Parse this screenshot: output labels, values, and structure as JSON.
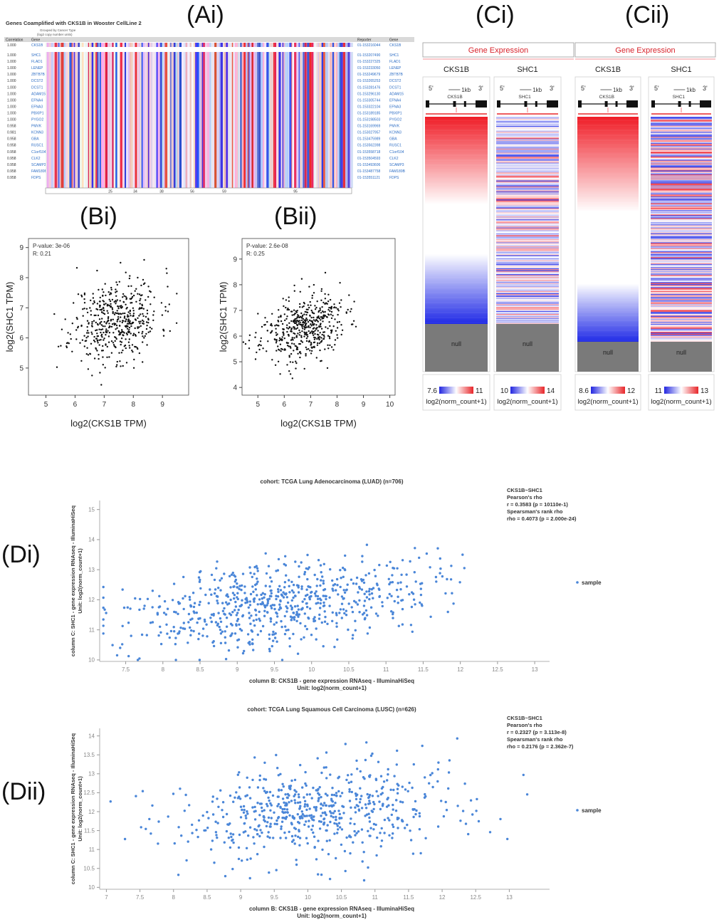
{
  "panel_labels": {
    "ai": "(Ai)",
    "bi": "(Bi)",
    "bii": "(Bii)",
    "ci": "(Ci)",
    "cii": "(Cii)",
    "di": "(Di)",
    "dii": "(Dii)"
  },
  "colors": {
    "red": "#e8262a",
    "blue": "#2226e0",
    "point": "#111111",
    "scatter_blue": "#4a86d8",
    "link": "#2b6cc4",
    "header_red": "#d8242c",
    "null_gray": "#7a7a7a"
  },
  "heatmap": {
    "title": "Genes Coamplified with CKS1B in Wooster CellLine 2",
    "subtitle1": "Grouped by Cancer Type",
    "subtitle2": "(log2 copy number units)",
    "col_correlation": "Correlation",
    "col_gene": "Gene",
    "col_reporter": "Reporter",
    "col_gene2": "Gene",
    "top_row": {
      "corr": "1.000",
      "gene": "CKS1B",
      "reporter": "01-153216044",
      "gene2": "CKS1B"
    },
    "rows": [
      {
        "corr": "1.000",
        "gene": "SHC1",
        "reporter": "01-153207490",
        "gene2": "SHC1"
      },
      {
        "corr": "1.000",
        "gene": "FLAD1",
        "reporter": "01-153227325",
        "gene2": "FLAD1"
      },
      {
        "corr": "1.000",
        "gene": "LENEP",
        "reporter": "01-153233050",
        "gene2": "LENEP"
      },
      {
        "corr": "1.000",
        "gene": "ZBTB7B",
        "reporter": "01-153249679",
        "gene2": "ZBTB7B"
      },
      {
        "corr": "1.000",
        "gene": "DCST2",
        "reporter": "01-153265253",
        "gene2": "DCST2"
      },
      {
        "corr": "1.000",
        "gene": "DCST1",
        "reporter": "01-153281476",
        "gene2": "DCST1"
      },
      {
        "corr": "1.000",
        "gene": "ADAM15",
        "reporter": "01-153296130",
        "gene2": "ADAM15"
      },
      {
        "corr": "1.000",
        "gene": "EFNA4",
        "reporter": "01-153305744",
        "gene2": "EFNA4"
      },
      {
        "corr": "1.000",
        "gene": "EFNA3",
        "reporter": "01-153322104",
        "gene2": "EFNA3"
      },
      {
        "corr": "1.000",
        "gene": "PBXIP1",
        "reporter": "01-153189185",
        "gene2": "PBXIP1"
      },
      {
        "corr": "1.000",
        "gene": "PYGO2",
        "reporter": "01-153198503",
        "gene2": "PYGO2"
      },
      {
        "corr": "0.958",
        "gene": "PMVK",
        "reporter": "01-153169969",
        "gene2": "PMVK"
      },
      {
        "corr": "0.981",
        "gene": "KCNN3",
        "reporter": "01-153027957",
        "gene2": "KCNN3"
      },
      {
        "corr": "0.958",
        "gene": "GBA",
        "reporter": "01-153475989",
        "gene2": "GBA"
      },
      {
        "corr": "0.958",
        "gene": "RUSC1",
        "reporter": "01-153562398",
        "gene2": "RUSC1"
      },
      {
        "corr": "0.958",
        "gene": "C1orf104",
        "reporter": "01-153558718",
        "gene2": "C1orf104"
      },
      {
        "corr": "0.958",
        "gene": "CLK2",
        "reporter": "01-153504593",
        "gene2": "CLK2"
      },
      {
        "corr": "0.958",
        "gene": "SCAMP3",
        "reporter": "01-153493606",
        "gene2": "SCAMP3"
      },
      {
        "corr": "0.958",
        "gene": "FAM189B",
        "reporter": "01-153487758",
        "gene2": "FAM189B"
      },
      {
        "corr": "0.958",
        "gene": "FDPS",
        "reporter": "01-153551121",
        "gene2": "FDPS"
      }
    ],
    "group_labels": [
      "25",
      "34",
      "38",
      "56",
      "59",
      "95"
    ]
  },
  "chart_data": [
    {
      "id": "Bi",
      "type": "scatter",
      "label_p": "P-value: 3e-06",
      "label_r": "R: 0.21",
      "xlabel": "log2(CKS1B TPM)",
      "ylabel": "log2(SHC1 TPM)",
      "xlim": [
        4.4,
        9.9
      ],
      "ylim": [
        4.1,
        9.3
      ],
      "xticks": [
        5,
        6,
        7,
        8,
        9
      ],
      "yticks": [
        5,
        6,
        7,
        8,
        9
      ],
      "n": 500,
      "xmean": 7.4,
      "xsd": 0.75,
      "ymean": 6.6,
      "ysd": 0.7,
      "r": 0.21,
      "seed": 11
    },
    {
      "id": "Bii",
      "type": "scatter",
      "label_p": "P-value: 2.6e-08",
      "label_r": "R: 0.25",
      "xlabel": "log2(CKS1B TPM)",
      "ylabel": "log2(SHC1 TPM)",
      "xlim": [
        4.4,
        10.2
      ],
      "ylim": [
        3.7,
        9.8
      ],
      "xticks": [
        5,
        6,
        7,
        8,
        9,
        10
      ],
      "yticks": [
        4,
        5,
        6,
        7,
        8,
        9
      ],
      "n": 500,
      "xmean": 6.7,
      "xsd": 0.8,
      "ymean": 6.3,
      "ysd": 0.65,
      "r": 0.25,
      "seed": 23
    },
    {
      "id": "Di",
      "type": "scatter",
      "title": "cohort: TCGA Lung Adenocarcinoma (LUAD) (n=706)",
      "xlabel": "column B: CKS1B - gene expression RNAseq - IlluminaHiSeq",
      "xunit": "Unit: log2(norm_count+1)",
      "ylabel": "column C: SHC1 - gene expression RNAseq - IlluminaHiSeq",
      "yunit": "Unit: log2(norm_count+1)",
      "stats": [
        "CKS1B~SHC1",
        "Pearson's rho",
        "r = 0.3583 (p = 10110e-1)",
        "Spearsman's rank rho",
        "rho = 0.4073 (p = 2.000e-24)"
      ],
      "legend": "sample",
      "xlim": [
        7.15,
        13.2
      ],
      "ylim": [
        9.95,
        15.3
      ],
      "xticks": [
        7.5,
        8,
        8.5,
        9,
        9.5,
        10,
        10.5,
        11,
        11.5,
        12,
        12.5,
        13
      ],
      "yticks": [
        10,
        11,
        12,
        13,
        14,
        15
      ],
      "n": 706,
      "xmean": 9.6,
      "xsd": 1.0,
      "ymean": 11.9,
      "ysd": 0.75,
      "r": 0.36,
      "seed": 37
    },
    {
      "id": "Dii",
      "type": "scatter",
      "title": "cohort: TCGA Lung Squamous Cell Carcinoma (LUSC) (n=626)",
      "xlabel": "column B: CKS1B - gene expression RNAseq - IlluminaHiSeq",
      "xunit": "Unit: log2(norm_count+1)",
      "ylabel": "column C: SHC1 - gene expression RNAseq - IlluminaHiSeq",
      "yunit": "Unit: log2(norm_count+1)",
      "stats": [
        "CKS1B~SHC1",
        "Pearson's rho",
        "r = 0.2327 (p = 3.113e-8)",
        "Spearsman's rank rho",
        "rho = 0.2176 (p = 2.362e-7)"
      ],
      "legend": "sample",
      "xlim": [
        6.9,
        13.6
      ],
      "ylim": [
        9.95,
        14.2
      ],
      "xticks": [
        7,
        7.5,
        8,
        8.5,
        9,
        9.5,
        10,
        10.5,
        11,
        11.5,
        12,
        12.5,
        13
      ],
      "yticks": [
        10,
        10.5,
        11,
        11.5,
        12,
        12.5,
        13,
        13.5,
        14
      ],
      "n": 626,
      "xmean": 10.2,
      "xsd": 1.1,
      "ymean": 12.0,
      "ysd": 0.65,
      "r": 0.23,
      "seed": 53
    },
    {
      "id": "Ci",
      "type": "heatmap",
      "header": "Gene Expression",
      "columns": [
        {
          "gene": "CKS1B",
          "legend_min": "7.6",
          "legend_max": "11",
          "legend_label": "log2(norm_count+1)",
          "null_label": "null"
        },
        {
          "gene": "SHC1",
          "legend_min": "10",
          "legend_max": "14",
          "legend_label": "log2(norm_count+1)",
          "null_label": "null"
        }
      ],
      "kb_label": "1kb"
    },
    {
      "id": "Cii",
      "type": "heatmap",
      "header": "Gene Expression",
      "columns": [
        {
          "gene": "CKS1B",
          "legend_min": "8.6",
          "legend_max": "12",
          "legend_label": "log2(norm_count+1)",
          "null_label": "null"
        },
        {
          "gene": "SHC1",
          "legend_min": "11",
          "legend_max": "13",
          "legend_label": "log2(norm_count+1)",
          "null_label": "null"
        }
      ],
      "kb_label": "1kb"
    }
  ],
  "gene_tracks": {
    "five": "5'",
    "three": "3'"
  }
}
